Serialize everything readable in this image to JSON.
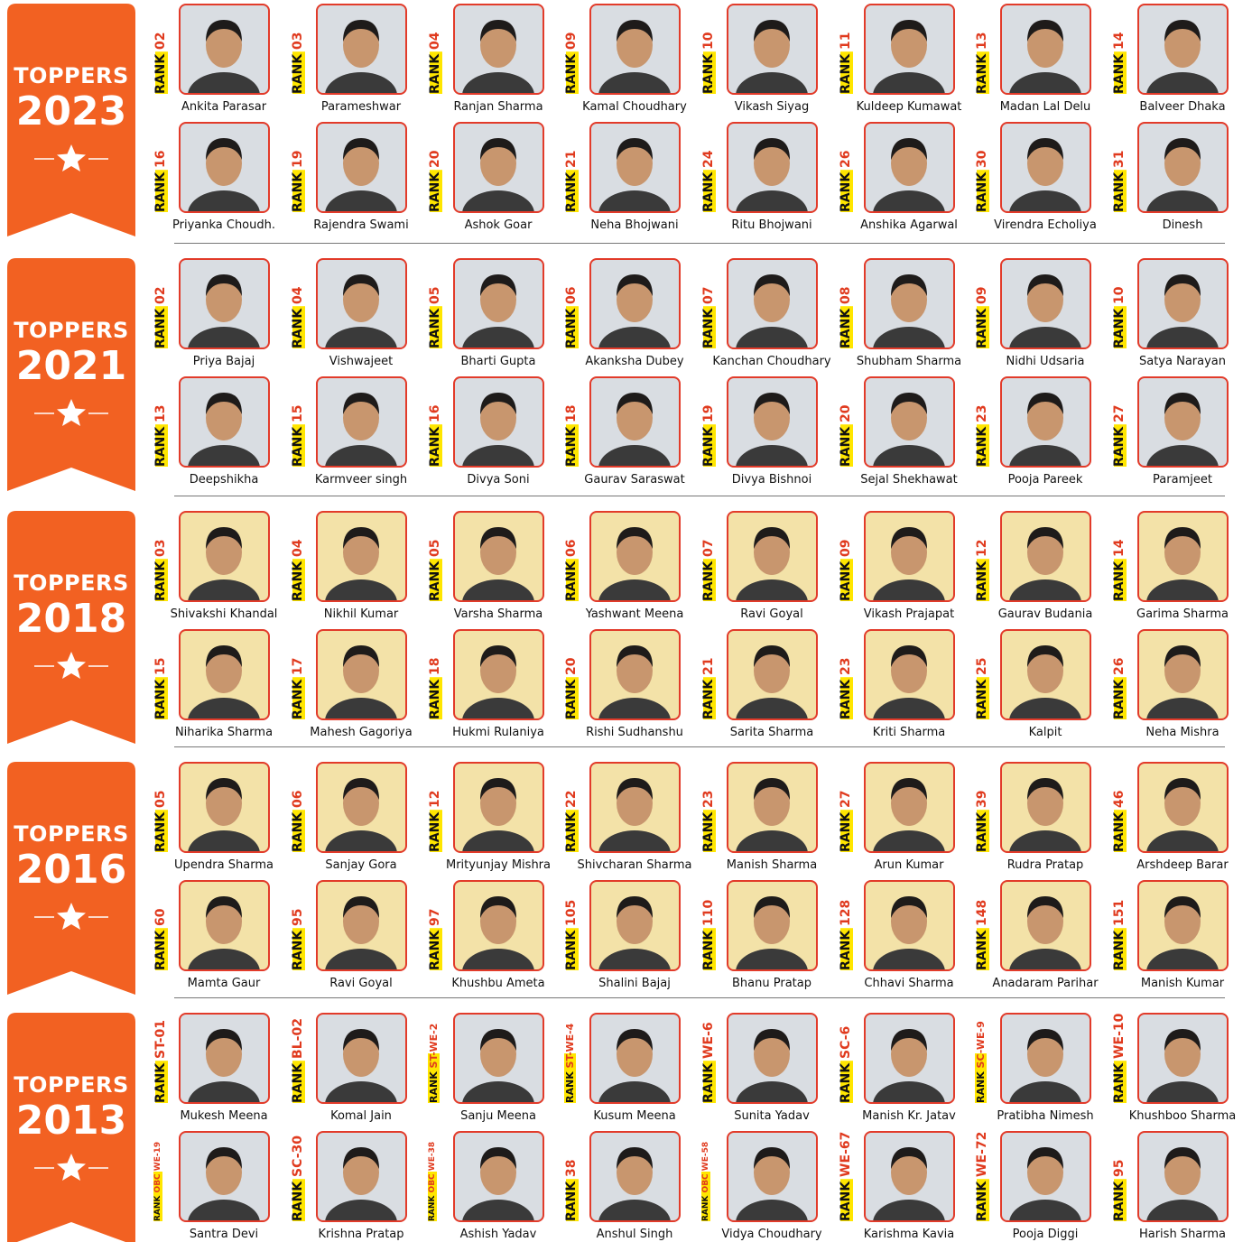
{
  "rank_word": "RANK",
  "sections": [
    {
      "label": "TOPPERS",
      "year": "2023",
      "people": [
        {
          "rank": "02",
          "name": "Ankita Parasar"
        },
        {
          "rank": "03",
          "name": "Parameshwar"
        },
        {
          "rank": "04",
          "name": "Ranjan Sharma"
        },
        {
          "rank": "09",
          "name": "Kamal Choudhary"
        },
        {
          "rank": "10",
          "name": "Vikash Siyag"
        },
        {
          "rank": "11",
          "name": "Kuldeep Kumawat"
        },
        {
          "rank": "13",
          "name": "Madan Lal Delu"
        },
        {
          "rank": "14",
          "name": "Balveer Dhaka"
        },
        {
          "rank": "16",
          "name": "Priyanka Choudh."
        },
        {
          "rank": "19",
          "name": "Rajendra Swami"
        },
        {
          "rank": "20",
          "name": "Ashok Goar"
        },
        {
          "rank": "21",
          "name": "Neha Bhojwani"
        },
        {
          "rank": "24",
          "name": "Ritu Bhojwani"
        },
        {
          "rank": "26",
          "name": "Anshika Agarwal"
        },
        {
          "rank": "30",
          "name": "Virendra Echoliya"
        },
        {
          "rank": "31",
          "name": "Dinesh"
        }
      ]
    },
    {
      "label": "TOPPERS",
      "year": "2021",
      "people": [
        {
          "rank": "02",
          "name": "Priya Bajaj"
        },
        {
          "rank": "04",
          "name": "Vishwajeet"
        },
        {
          "rank": "05",
          "name": "Bharti Gupta"
        },
        {
          "rank": "06",
          "name": "Akanksha Dubey"
        },
        {
          "rank": "07",
          "name": "Kanchan Choudhary"
        },
        {
          "rank": "08",
          "name": "Shubham Sharma"
        },
        {
          "rank": "09",
          "name": "Nidhi Udsaria"
        },
        {
          "rank": "10",
          "name": "Satya Narayan"
        },
        {
          "rank": "13",
          "name": "Deepshikha"
        },
        {
          "rank": "15",
          "name": "Karmveer singh"
        },
        {
          "rank": "16",
          "name": "Divya Soni"
        },
        {
          "rank": "18",
          "name": "Gaurav Saraswat"
        },
        {
          "rank": "19",
          "name": "Divya Bishnoi"
        },
        {
          "rank": "20",
          "name": "Sejal Shekhawat"
        },
        {
          "rank": "23",
          "name": "Pooja Pareek"
        },
        {
          "rank": "27",
          "name": "Paramjeet"
        }
      ]
    },
    {
      "label": "TOPPERS",
      "year": "2018",
      "people": [
        {
          "rank": "03",
          "name": "Shivakshi Khandal"
        },
        {
          "rank": "04",
          "name": "Nikhil Kumar"
        },
        {
          "rank": "05",
          "name": "Varsha Sharma"
        },
        {
          "rank": "06",
          "name": "Yashwant Meena"
        },
        {
          "rank": "07",
          "name": "Ravi Goyal"
        },
        {
          "rank": "09",
          "name": "Vikash Prajapat"
        },
        {
          "rank": "12",
          "name": "Gaurav Budania"
        },
        {
          "rank": "14",
          "name": "Garima Sharma"
        },
        {
          "rank": "15",
          "name": "Niharika Sharma"
        },
        {
          "rank": "17",
          "name": "Mahesh Gagoriya"
        },
        {
          "rank": "18",
          "name": "Hukmi Rulaniya"
        },
        {
          "rank": "20",
          "name": "Rishi Sudhanshu"
        },
        {
          "rank": "21",
          "name": "Sarita Sharma"
        },
        {
          "rank": "23",
          "name": "Kriti Sharma"
        },
        {
          "rank": "25",
          "name": "Kalpit"
        },
        {
          "rank": "26",
          "name": "Neha Mishra"
        }
      ]
    },
    {
      "label": "TOPPERS",
      "year": "2016",
      "people": [
        {
          "rank": "05",
          "name": "Upendra Sharma"
        },
        {
          "rank": "06",
          "name": "Sanjay Gora"
        },
        {
          "rank": "12",
          "name": "Mrityunjay Mishra"
        },
        {
          "rank": "22",
          "name": "Shivcharan Sharma"
        },
        {
          "rank": "23",
          "name": "Manish Sharma"
        },
        {
          "rank": "27",
          "name": "Arun Kumar"
        },
        {
          "rank": "39",
          "name": "Rudra Pratap"
        },
        {
          "rank": "46",
          "name": "Arshdeep Barar"
        },
        {
          "rank": "60",
          "name": "Mamta Gaur"
        },
        {
          "rank": "95",
          "name": "Ravi Goyal"
        },
        {
          "rank": "97",
          "name": "Khushbu Ameta"
        },
        {
          "rank": "105",
          "name": "Shalini Bajaj"
        },
        {
          "rank": "110",
          "name": "Bhanu Pratap"
        },
        {
          "rank": "128",
          "name": "Chhavi Sharma"
        },
        {
          "rank": "148",
          "name": "Anadaram Parihar"
        },
        {
          "rank": "151",
          "name": "Manish Kumar"
        }
      ]
    },
    {
      "label": "TOPPERS",
      "year": "2013",
      "people": [
        {
          "rank": "ST-01",
          "name": "Mukesh Meena"
        },
        {
          "rank": "BL-02",
          "name": "Komal Jain"
        },
        {
          "rank": "ST-WE-2",
          "name": "Sanju Meena"
        },
        {
          "rank": "ST-WE-4",
          "name": "Kusum Meena"
        },
        {
          "rank": "WE-6",
          "name": "Sunita Yadav"
        },
        {
          "rank": "SC-6",
          "name": "Manish Kr. Jatav"
        },
        {
          "rank": "SC-WE-9",
          "name": "Pratibha Nimesh"
        },
        {
          "rank": "WE-10",
          "name": "Khushboo Sharma"
        },
        {
          "rank": "OBC WE-19",
          "name": "Santra Devi"
        },
        {
          "rank": "SC-30",
          "name": "Krishna Pratap"
        },
        {
          "rank": "OBC WE-38",
          "name": "Ashish Yadav"
        },
        {
          "rank": "38",
          "name": "Anshul Singh"
        },
        {
          "rank": "OBC WE-58",
          "name": "Vidya Choudhary"
        },
        {
          "rank": "WE-67",
          "name": "Karishma Kavia"
        },
        {
          "rank": "WE-72",
          "name": "Pooja Diggi"
        },
        {
          "rank": "95",
          "name": "Harish Sharma"
        }
      ]
    }
  ]
}
